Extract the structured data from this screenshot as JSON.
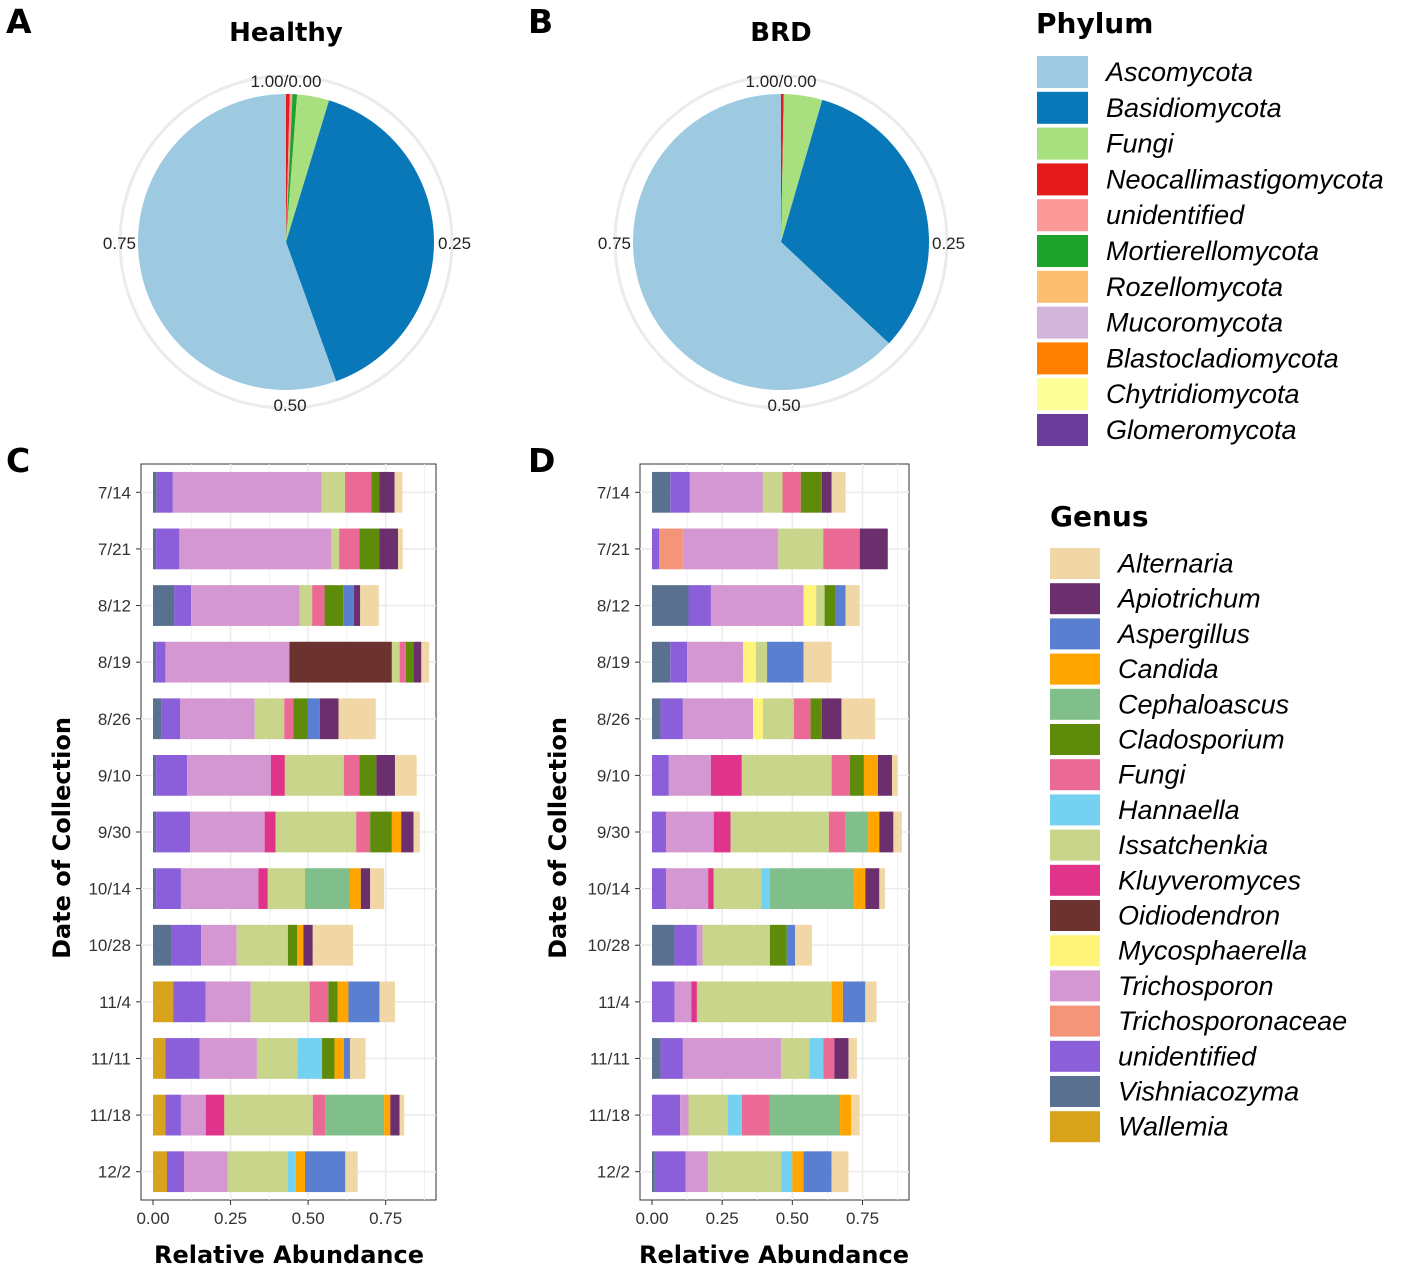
{
  "panel_labels": [
    "A",
    "B",
    "C",
    "D"
  ],
  "pie_axis_ticks": [
    "1.00/0.00",
    "0.25",
    "0.50",
    "0.75"
  ],
  "phylum_colors": {
    "Ascomycota": "#9ECAE1",
    "Basidiomycota": "#0878B8",
    "Fungi": "#A8E080",
    "Neocallimastigomycota": "#E41A1C",
    "unidentified": "#FB9A99",
    "Mortierellomycota": "#1EA32C",
    "Rozellomycota": "#FDBF6F",
    "Mucoromycota": "#D3B4DB",
    "Blastocladiomycota": "#FF7F00",
    "Chytridiomycota": "#FFFF99",
    "Glomeromycota": "#6A3D9A"
  },
  "genus_colors": {
    "Alternaria": "#F2D7A6",
    "Apiotrichum": "#6B2F6E",
    "Aspergillus": "#5A7FD0",
    "Candida": "#FFA500",
    "Cephaloascus": "#80BF8A",
    "Cladosporium": "#5E8C0A",
    "Fungi": "#EA6A95",
    "Hannaella": "#74D1F0",
    "Issatchenkia": "#C8D58A",
    "Kluyveromyces": "#E0338A",
    "Oidiodendron": "#6B3230",
    "Mycosphaerella": "#FFF47A",
    "Trichosporon": "#D597D1",
    "Trichosporonaceae": "#F4957A",
    "unidentified": "#8A5FD9",
    "Vishniacozyma": "#5A708F",
    "Wallemia": "#D8A31A"
  },
  "chart_data": [
    {
      "panel": "A",
      "type": "pie",
      "title": "Healthy",
      "slices": [
        {
          "name": "Neocallimastigomycota",
          "value": 0.004
        },
        {
          "name": "unidentified",
          "value": 0.003
        },
        {
          "name": "Mortierellomycota",
          "value": 0.005
        },
        {
          "name": "Fungi",
          "value": 0.035
        },
        {
          "name": "Basidiomycota",
          "value": 0.398
        },
        {
          "name": "Ascomycota",
          "value": 0.555
        }
      ]
    },
    {
      "panel": "B",
      "type": "pie",
      "title": "BRD",
      "slices": [
        {
          "name": "Neocallimastigomycota",
          "value": 0.003
        },
        {
          "name": "Fungi",
          "value": 0.042
        },
        {
          "name": "Basidiomycota",
          "value": 0.325
        },
        {
          "name": "Ascomycota",
          "value": 0.63
        }
      ]
    },
    {
      "panel": "C",
      "type": "bar",
      "orientation": "horizontal",
      "stacked": true,
      "xlabel": "Relative Abundance",
      "ylabel": "Date of Collection",
      "xlim": [
        0,
        0.9
      ],
      "xticks": [
        "0.00",
        "0.25",
        "0.50",
        "0.75"
      ],
      "categories": [
        "7/14",
        "7/21",
        "8/12",
        "8/19",
        "8/26",
        "9/10",
        "9/30",
        "10/14",
        "10/28",
        "11/4",
        "11/11",
        "11/18",
        "12/2"
      ],
      "stacks": [
        [
          [
            "Vishniacozyma",
            0.012
          ],
          [
            "unidentified",
            0.052
          ],
          [
            "Trichosporon",
            0.48
          ],
          [
            "Issatchenkia",
            0.075
          ],
          [
            "Fungi",
            0.085
          ],
          [
            "Cladosporium",
            0.025
          ],
          [
            "Apiotrichum",
            0.05
          ],
          [
            "Alternaria",
            0.025
          ]
        ],
        [
          [
            "Vishniacozyma",
            0.01
          ],
          [
            "unidentified",
            0.075
          ],
          [
            "Trichosporon",
            0.49
          ],
          [
            "Issatchenkia",
            0.025
          ],
          [
            "Fungi",
            0.065
          ],
          [
            "Cladosporium",
            0.065
          ],
          [
            "Apiotrichum",
            0.06
          ],
          [
            "Alternaria",
            0.015
          ]
        ],
        [
          [
            "Vishniacozyma",
            0.068
          ],
          [
            "unidentified",
            0.055
          ],
          [
            "Trichosporon",
            0.35
          ],
          [
            "Issatchenkia",
            0.04
          ],
          [
            "Fungi",
            0.04
          ],
          [
            "Cladosporium",
            0.06
          ],
          [
            "Aspergillus",
            0.035
          ],
          [
            "Apiotrichum",
            0.02
          ],
          [
            "Alternaria",
            0.06
          ]
        ],
        [
          [
            "Vishniacozyma",
            0.01
          ],
          [
            "unidentified",
            0.03
          ],
          [
            "Trichosporon",
            0.4
          ],
          [
            "Oidiodendron",
            0.33
          ],
          [
            "Issatchenkia",
            0.025
          ],
          [
            "Fungi",
            0.02
          ],
          [
            "Cladosporium",
            0.025
          ],
          [
            "Apiotrichum",
            0.025
          ],
          [
            "Alternaria",
            0.025
          ]
        ],
        [
          [
            "Vishniacozyma",
            0.028
          ],
          [
            "unidentified",
            0.06
          ],
          [
            "Trichosporon",
            0.24
          ],
          [
            "Issatchenkia",
            0.095
          ],
          [
            "Fungi",
            0.03
          ],
          [
            "Cladosporium",
            0.045
          ],
          [
            "Aspergillus",
            0.04
          ],
          [
            "Apiotrichum",
            0.06
          ],
          [
            "Alternaria",
            0.12
          ]
        ],
        [
          [
            "Vishniacozyma",
            0.01
          ],
          [
            "unidentified",
            0.1
          ],
          [
            "Trichosporon",
            0.27
          ],
          [
            "Kluyveromyces",
            0.045
          ],
          [
            "Issatchenkia",
            0.19
          ],
          [
            "Fungi",
            0.05
          ],
          [
            "Cladosporium",
            0.055
          ],
          [
            "Apiotrichum",
            0.06
          ],
          [
            "Alternaria",
            0.07
          ]
        ],
        [
          [
            "Vishniacozyma",
            0.01
          ],
          [
            "unidentified",
            0.11
          ],
          [
            "Trichosporon",
            0.24
          ],
          [
            "Kluyveromyces",
            0.035
          ],
          [
            "Issatchenkia",
            0.26
          ],
          [
            "Fungi",
            0.045
          ],
          [
            "Cladosporium",
            0.07
          ],
          [
            "Candida",
            0.03
          ],
          [
            "Apiotrichum",
            0.04
          ],
          [
            "Alternaria",
            0.02
          ]
        ],
        [
          [
            "Vishniacozyma",
            0.01
          ],
          [
            "unidentified",
            0.08
          ],
          [
            "Trichosporon",
            0.25
          ],
          [
            "Kluyveromyces",
            0.03
          ],
          [
            "Issatchenkia",
            0.12
          ],
          [
            "Cephaloascus",
            0.145
          ],
          [
            "Candida",
            0.035
          ],
          [
            "Apiotrichum",
            0.03
          ],
          [
            "Alternaria",
            0.045
          ]
        ],
        [
          [
            "Vishniacozyma",
            0.06
          ],
          [
            "unidentified",
            0.095
          ],
          [
            "Trichosporon",
            0.115
          ],
          [
            "Issatchenkia",
            0.165
          ],
          [
            "Cladosporium",
            0.03
          ],
          [
            "Candida",
            0.02
          ],
          [
            "Apiotrichum",
            0.03
          ],
          [
            "Alternaria",
            0.13
          ]
        ],
        [
          [
            "Wallemia",
            0.065
          ],
          [
            "unidentified",
            0.105
          ],
          [
            "Trichosporon",
            0.145
          ],
          [
            "Issatchenkia",
            0.19
          ],
          [
            "Fungi",
            0.06
          ],
          [
            "Cladosporium",
            0.03
          ],
          [
            "Candida",
            0.035
          ],
          [
            "Aspergillus",
            0.1
          ],
          [
            "Alternaria",
            0.05
          ]
        ],
        [
          [
            "Wallemia",
            0.04
          ],
          [
            "unidentified",
            0.11
          ],
          [
            "Trichosporon",
            0.185
          ],
          [
            "Issatchenkia",
            0.13
          ],
          [
            "Hannaella",
            0.08
          ],
          [
            "Cladosporium",
            0.04
          ],
          [
            "Candida",
            0.03
          ],
          [
            "Aspergillus",
            0.02
          ],
          [
            "Alternaria",
            0.05
          ]
        ],
        [
          [
            "Wallemia",
            0.04
          ],
          [
            "unidentified",
            0.05
          ],
          [
            "Trichosporon",
            0.08
          ],
          [
            "Kluyveromyces",
            0.06
          ],
          [
            "Issatchenkia",
            0.285
          ],
          [
            "Fungi",
            0.04
          ],
          [
            "Cephaloascus",
            0.19
          ],
          [
            "Candida",
            0.02
          ],
          [
            "Apiotrichum",
            0.03
          ],
          [
            "Alternaria",
            0.015
          ]
        ],
        [
          [
            "Wallemia",
            0.045
          ],
          [
            "unidentified",
            0.055
          ],
          [
            "Trichosporon",
            0.14
          ],
          [
            "Issatchenkia",
            0.195
          ],
          [
            "Hannaella",
            0.025
          ],
          [
            "Candida",
            0.03
          ],
          [
            "Aspergillus",
            0.13
          ],
          [
            "Alternaria",
            0.04
          ]
        ]
      ]
    },
    {
      "panel": "D",
      "type": "bar",
      "orientation": "horizontal",
      "stacked": true,
      "xlabel": "Relative Abundance",
      "ylabel": "Date of Collection",
      "xlim": [
        0,
        0.9
      ],
      "xticks": [
        "0.00",
        "0.25",
        "0.50",
        "0.75"
      ],
      "categories": [
        "7/14",
        "7/21",
        "8/12",
        "8/19",
        "8/26",
        "9/10",
        "9/30",
        "10/14",
        "10/28",
        "11/4",
        "11/11",
        "11/18",
        "12/2"
      ],
      "stacks": [
        [
          [
            "Vishniacozyma",
            0.065
          ],
          [
            "unidentified",
            0.07
          ],
          [
            "Trichosporon",
            0.26
          ],
          [
            "Issatchenkia",
            0.07
          ],
          [
            "Fungi",
            0.065
          ],
          [
            "Cladosporium",
            0.075
          ],
          [
            "Apiotrichum",
            0.035
          ],
          [
            "Alternaria",
            0.05
          ]
        ],
        [
          [
            "unidentified",
            0.025
          ],
          [
            "Trichosporonaceae",
            0.085
          ],
          [
            "Trichosporon",
            0.34
          ],
          [
            "Issatchenkia",
            0.16
          ],
          [
            "Fungi",
            0.13
          ],
          [
            "Apiotrichum",
            0.1
          ]
        ],
        [
          [
            "Vishniacozyma",
            0.13
          ],
          [
            "unidentified",
            0.08
          ],
          [
            "Trichosporon",
            0.33
          ],
          [
            "Mycosphaerella",
            0.045
          ],
          [
            "Issatchenkia",
            0.03
          ],
          [
            "Cladosporium",
            0.04
          ],
          [
            "Aspergillus",
            0.035
          ],
          [
            "Alternaria",
            0.05
          ]
        ],
        [
          [
            "Vishniacozyma",
            0.065
          ],
          [
            "unidentified",
            0.06
          ],
          [
            "Trichosporon",
            0.2
          ],
          [
            "Mycosphaerella",
            0.045
          ],
          [
            "Issatchenkia",
            0.04
          ],
          [
            "Aspergillus",
            0.13
          ],
          [
            "Alternaria",
            0.1
          ]
        ],
        [
          [
            "Vishniacozyma",
            0.03
          ],
          [
            "unidentified",
            0.08
          ],
          [
            "Trichosporon",
            0.25
          ],
          [
            "Mycosphaerella",
            0.035
          ],
          [
            "Issatchenkia",
            0.11
          ],
          [
            "Fungi",
            0.06
          ],
          [
            "Cladosporium",
            0.04
          ],
          [
            "Apiotrichum",
            0.07
          ],
          [
            "Alternaria",
            0.12
          ]
        ],
        [
          [
            "unidentified",
            0.06
          ],
          [
            "Trichosporon",
            0.15
          ],
          [
            "Kluyveromyces",
            0.11
          ],
          [
            "Issatchenkia",
            0.32
          ],
          [
            "Fungi",
            0.065
          ],
          [
            "Cladosporium",
            0.05
          ],
          [
            "Candida",
            0.05
          ],
          [
            "Apiotrichum",
            0.05
          ],
          [
            "Alternaria",
            0.02
          ]
        ],
        [
          [
            "unidentified",
            0.05
          ],
          [
            "Trichosporon",
            0.17
          ],
          [
            "Kluyveromyces",
            0.06
          ],
          [
            "Issatchenkia",
            0.35
          ],
          [
            "Fungi",
            0.06
          ],
          [
            "Cephaloascus",
            0.08
          ],
          [
            "Candida",
            0.04
          ],
          [
            "Apiotrichum",
            0.05
          ],
          [
            "Alternaria",
            0.03
          ]
        ],
        [
          [
            "unidentified",
            0.05
          ],
          [
            "Trichosporon",
            0.15
          ],
          [
            "Kluyveromyces",
            0.02
          ],
          [
            "Issatchenkia",
            0.17
          ],
          [
            "Hannaella",
            0.03
          ],
          [
            "Cephaloascus",
            0.3
          ],
          [
            "Candida",
            0.04
          ],
          [
            "Apiotrichum",
            0.05
          ],
          [
            "Alternaria",
            0.02
          ]
        ],
        [
          [
            "Vishniacozyma",
            0.08
          ],
          [
            "unidentified",
            0.08
          ],
          [
            "Trichosporon",
            0.02
          ],
          [
            "Issatchenkia",
            0.24
          ],
          [
            "Cladosporium",
            0.06
          ],
          [
            "Aspergillus",
            0.03
          ],
          [
            "Alternaria",
            0.06
          ]
        ],
        [
          [
            "unidentified",
            0.08
          ],
          [
            "Trichosporon",
            0.06
          ],
          [
            "Kluyveromyces",
            0.02
          ],
          [
            "Issatchenkia",
            0.48
          ],
          [
            "Candida",
            0.04
          ],
          [
            "Aspergillus",
            0.08
          ],
          [
            "Alternaria",
            0.04
          ]
        ],
        [
          [
            "Vishniacozyma",
            0.03
          ],
          [
            "unidentified",
            0.08
          ],
          [
            "Trichosporon",
            0.35
          ],
          [
            "Issatchenkia",
            0.1
          ],
          [
            "Hannaella",
            0.05
          ],
          [
            "Fungi",
            0.04
          ],
          [
            "Apiotrichum",
            0.05
          ],
          [
            "Alternaria",
            0.03
          ]
        ],
        [
          [
            "unidentified",
            0.1
          ],
          [
            "Trichosporon",
            0.03
          ],
          [
            "Issatchenkia",
            0.14
          ],
          [
            "Hannaella",
            0.05
          ],
          [
            "Fungi",
            0.1
          ],
          [
            "Cephaloascus",
            0.25
          ],
          [
            "Candida",
            0.04
          ],
          [
            "Alternaria",
            0.03
          ]
        ],
        [
          [
            "Vishniacozyma",
            0.01
          ],
          [
            "unidentified",
            0.11
          ],
          [
            "Trichosporon",
            0.08
          ],
          [
            "Issatchenkia",
            0.26
          ],
          [
            "Hannaella",
            0.04
          ],
          [
            "Candida",
            0.04
          ],
          [
            "Aspergillus",
            0.1
          ],
          [
            "Alternaria",
            0.06
          ]
        ]
      ]
    }
  ],
  "legend_phylum": {
    "title": "Phylum",
    "items": [
      "Ascomycota",
      "Basidiomycota",
      "Fungi",
      "Neocallimastigomycota",
      "unidentified",
      "Mortierellomycota",
      "Rozellomycota",
      "Mucoromycota",
      "Blastocladiomycota",
      "Chytridiomycota",
      "Glomeromycota"
    ]
  },
  "legend_genus": {
    "title": "Genus",
    "items": [
      "Alternaria",
      "Apiotrichum",
      "Aspergillus",
      "Candida",
      "Cephaloascus",
      "Cladosporium",
      "Fungi",
      "Hannaella",
      "Issatchenkia",
      "Kluyveromyces",
      "Oidiodendron",
      "Mycosphaerella",
      "Trichosporon",
      "Trichosporonaceae",
      "unidentified",
      "Vishniacozyma",
      "Wallemia"
    ]
  }
}
